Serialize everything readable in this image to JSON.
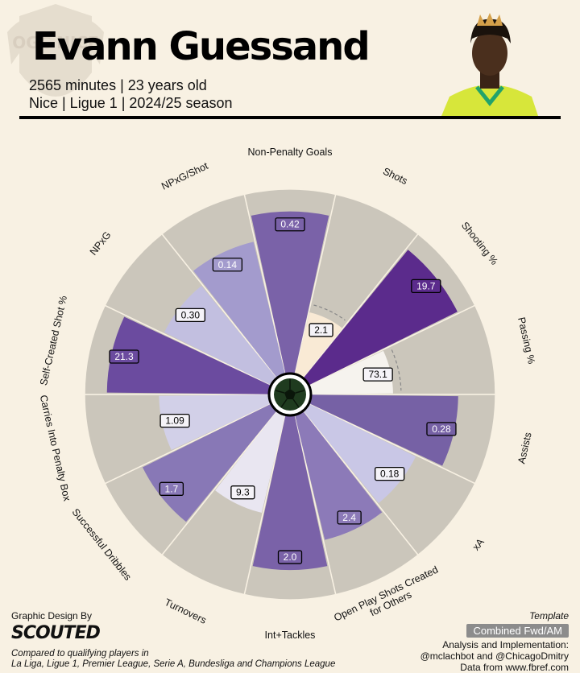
{
  "header": {
    "player_name": "Evann Guessand",
    "line1": "2565 minutes | 23 years old",
    "line2": "Nice | Ligue 1 | 2024/25 season",
    "crest_text": "OGC NICE"
  },
  "footer": {
    "design_label": "Graphic Design By",
    "design_logo": "SCOUTED",
    "compared_line1": "Compared to qualifying players in",
    "compared_line2": "La Liga, Ligue 1, Premier League, Serie A, Bundesliga and Champions League",
    "template_label": "Template",
    "template_value": "Combined Fwd/AM",
    "analysis_line1": "Analysis and Implementation:",
    "analysis_line2": "@mclachbot and @ChicagoDmitry",
    "analysis_line3": "Data from www.fbref.com"
  },
  "chart_data": {
    "type": "polar-bar",
    "percentile_range": [
      0,
      100
    ],
    "categories": [
      "Non-Penalty Goals",
      "Shots",
      "Shooting %",
      "Passing %",
      "Assists",
      "xA",
      "Open Play Shots Created for Others",
      "Int+Tackles",
      "Turnovers",
      "Successful Dribbles",
      "Carries Into Penalty Box",
      "Self-Created Shot %",
      "NPxG",
      "NPxG/Shot"
    ],
    "labels": [
      "0.42",
      "2.1",
      "19.7",
      "73.1",
      "0.28",
      "0.18",
      "2.4",
      "2.0",
      "9.3",
      "1.7",
      "1.09",
      "21.3",
      "0.30",
      "0.14"
    ],
    "percentiles": [
      88,
      35,
      90,
      45,
      80,
      65,
      70,
      84,
      55,
      78,
      60,
      88,
      65,
      74
    ],
    "colors": [
      "#7a62a8",
      "#f9ead5",
      "#5b2b8c",
      "#f6f3ee",
      "#7661a5",
      "#c9c7e6",
      "#8c7ab8",
      "#7a62a8",
      "#e9e6f1",
      "#8878b6",
      "#d2d0e8",
      "#6b4b9f",
      "#c2bfe0",
      "#a39bcd"
    ],
    "dashed_reference_indices": [
      1,
      3
    ],
    "background_color": "#cbc6bb"
  }
}
